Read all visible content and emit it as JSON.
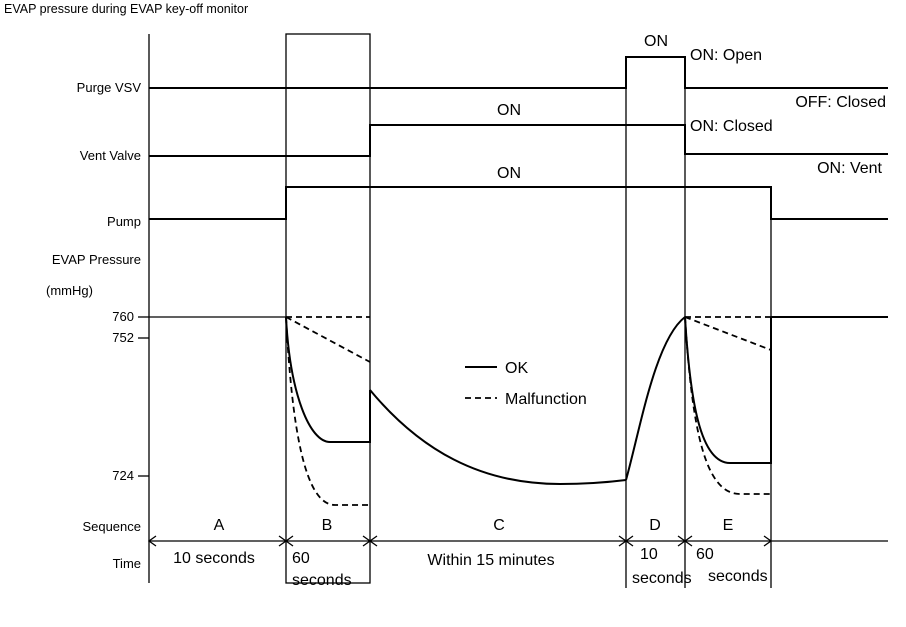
{
  "title": "EVAP pressure during EVAP key-off monitor",
  "rows": {
    "purge_vsv": "Purge VSV",
    "vent_valve": "Vent Valve",
    "pump": "Pump",
    "evap_pressure": "EVAP Pressure",
    "unit": "(mmHg)",
    "sequence": "Sequence",
    "time": "Time"
  },
  "pressure_ticks": [
    "760",
    "752",
    "724"
  ],
  "state_labels": {
    "vent_on": "ON",
    "pump_on": "ON",
    "purge_on": "ON",
    "on_open": "ON: Open",
    "off_closed": "OFF: Closed",
    "on_closed": "ON: Closed",
    "on_vent": "ON: Vent"
  },
  "legend": {
    "ok": "OK",
    "malfunction": "Malfunction"
  },
  "sequence": [
    "A",
    "B",
    "C",
    "D",
    "E"
  ],
  "time": {
    "a": "10 seconds",
    "b_line1": "60",
    "b_line2": "seconds",
    "c": "Within 15 minutes",
    "d_line1": "10",
    "d_line2": "seconds",
    "e_line1": "60",
    "e_line2": "seconds"
  }
}
